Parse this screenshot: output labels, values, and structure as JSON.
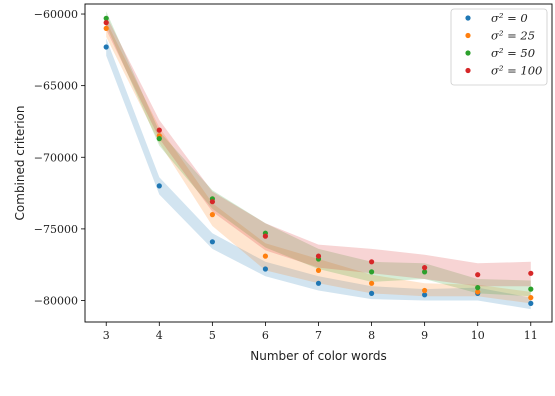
{
  "chart_data": {
    "type": "scatter",
    "title": "",
    "xlabel": "Number of color words",
    "ylabel": "Combined criterion",
    "x": [
      3,
      4,
      5,
      6,
      7,
      8,
      9,
      10,
      11
    ],
    "xlim": [
      2.6,
      11.4
    ],
    "ylim": [
      -81500,
      -59300
    ],
    "yticks": [
      -60000,
      -65000,
      -70000,
      -75000,
      -80000
    ],
    "ytick_labels": [
      "−60000",
      "−65000",
      "−70000",
      "−75000",
      "−80000"
    ],
    "xtick_labels": [
      "3",
      "4",
      "5",
      "6",
      "7",
      "8",
      "9",
      "10",
      "11"
    ],
    "legend_position": "top-right",
    "grid": false,
    "series": [
      {
        "name": "σ² = 0",
        "color": "#1f77b4",
        "values": [
          -62300,
          -72000,
          -75900,
          -77800,
          -78800,
          -79500,
          -79600,
          -79500,
          -80200
        ],
        "band_low": [
          -62900,
          -72600,
          -76400,
          -78300,
          -79300,
          -79900,
          -80000,
          -80000,
          -80600
        ],
        "band_high": [
          -61700,
          -71400,
          -75300,
          -77300,
          -78300,
          -79000,
          -79200,
          -79100,
          -79800
        ]
      },
      {
        "name": "σ² = 25",
        "color": "#ff7f0e",
        "values": [
          -61000,
          -68500,
          -74000,
          -76900,
          -77900,
          -78800,
          -79300,
          -79400,
          -79800
        ],
        "band_low": [
          -61600,
          -69000,
          -74800,
          -77900,
          -78800,
          -79500,
          -79700,
          -79700,
          -80200
        ],
        "band_high": [
          -60500,
          -67900,
          -73200,
          -76000,
          -77100,
          -78200,
          -78800,
          -78900,
          -79400
        ]
      },
      {
        "name": "σ² = 50",
        "color": "#2ca02c",
        "values": [
          -60300,
          -68700,
          -72900,
          -75300,
          -77100,
          -78000,
          -78000,
          -79100,
          -79200
        ],
        "band_low": [
          -60800,
          -69200,
          -73600,
          -76300,
          -77800,
          -78700,
          -78500,
          -79500,
          -79700
        ],
        "band_high": [
          -59800,
          -68200,
          -72300,
          -74600,
          -76400,
          -77300,
          -77400,
          -78500,
          -78600
        ]
      },
      {
        "name": "σ² = 100",
        "color": "#d62728",
        "values": [
          -60600,
          -68100,
          -73100,
          -75500,
          -76900,
          -77300,
          -77700,
          -78200,
          -78100
        ],
        "band_low": [
          -61100,
          -68700,
          -73800,
          -76500,
          -77700,
          -78100,
          -78500,
          -79000,
          -79000
        ],
        "band_high": [
          -60100,
          -67400,
          -72400,
          -74600,
          -76100,
          -76400,
          -76800,
          -77400,
          -77300
        ]
      }
    ]
  }
}
